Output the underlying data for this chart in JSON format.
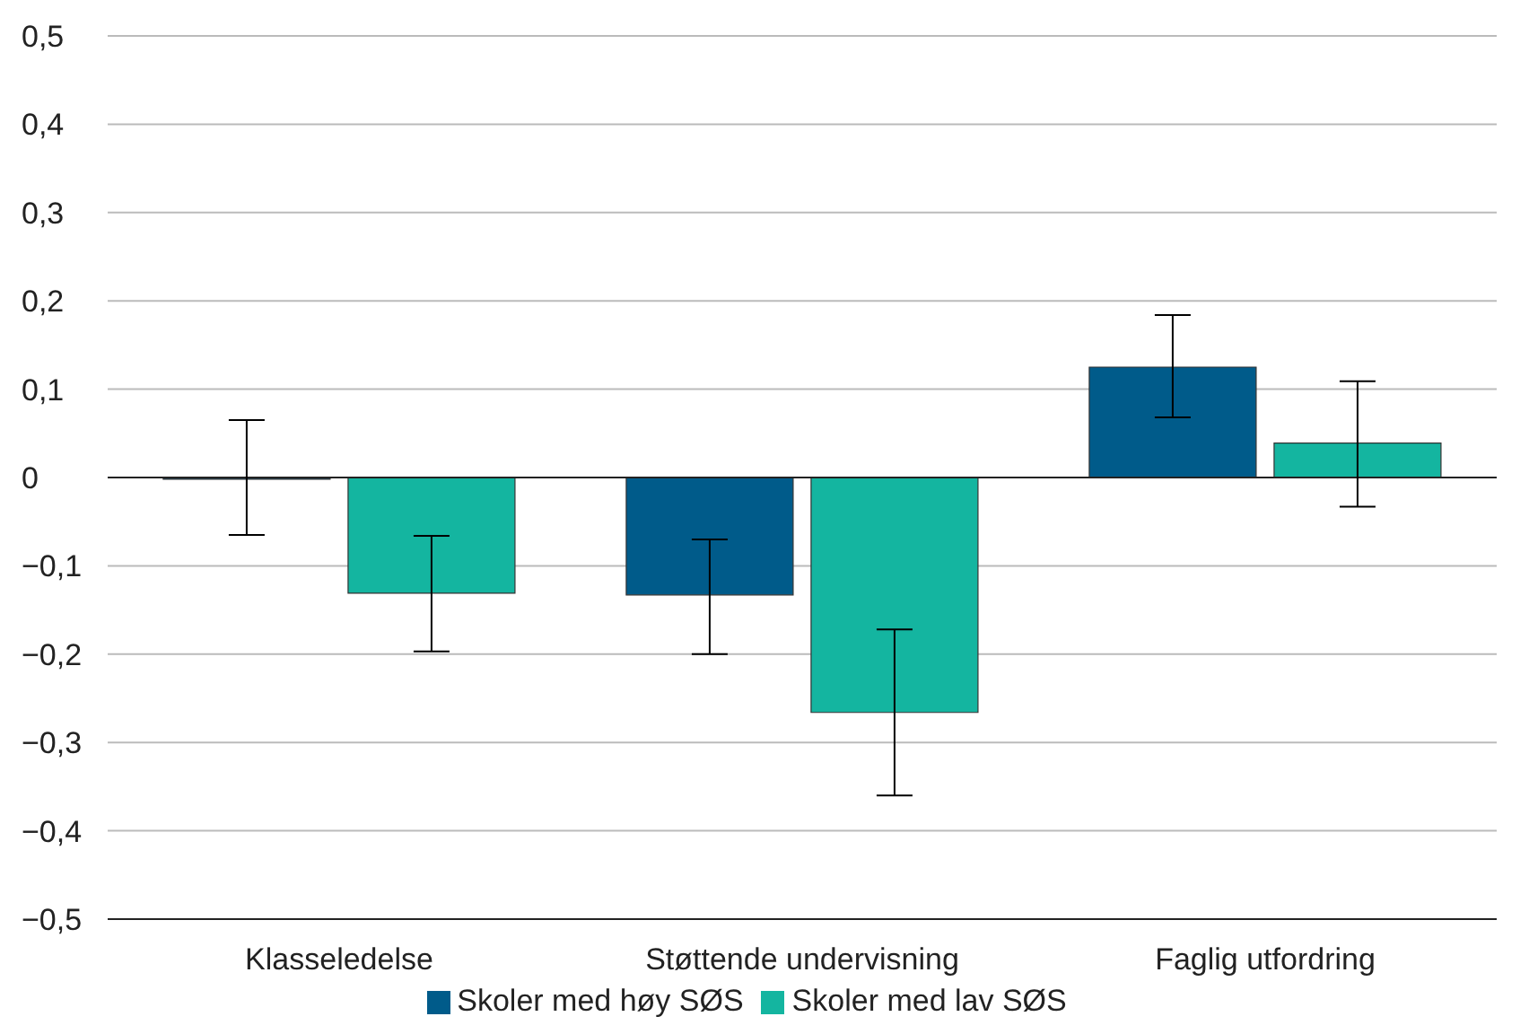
{
  "chart_data": {
    "type": "bar",
    "categories": [
      "Klasseledelse",
      "Støttende undervisning",
      "Faglig utfordring"
    ],
    "series": [
      {
        "name": "Skoler med høy SØS",
        "color": "#005b8a",
        "values": [
          -0.002,
          -0.133,
          0.125
        ],
        "errors": [
          [
            -0.065,
            0.065
          ],
          [
            -0.2,
            -0.07
          ],
          [
            0.068,
            0.184
          ]
        ]
      },
      {
        "name": "Skoler med lav SØS",
        "color": "#14b5a0",
        "values": [
          -0.131,
          -0.266,
          0.039
        ],
        "errors": [
          [
            -0.197,
            -0.066
          ],
          [
            -0.36,
            -0.172
          ],
          [
            -0.033,
            0.109
          ]
        ]
      }
    ],
    "ylim": [
      -0.5,
      0.5
    ],
    "yticks": [
      {
        "value": -0.5,
        "label": "−0,5"
      },
      {
        "value": -0.4,
        "label": "−0,4"
      },
      {
        "value": -0.3,
        "label": "−0,3"
      },
      {
        "value": -0.2,
        "label": "−0,2"
      },
      {
        "value": -0.1,
        "label": "−0,1"
      },
      {
        "value": 0,
        "label": "0"
      },
      {
        "value": 0.1,
        "label": "0,1"
      },
      {
        "value": 0.2,
        "label": "0,2"
      },
      {
        "value": 0.3,
        "label": "0,3"
      },
      {
        "value": 0.4,
        "label": "0,4"
      },
      {
        "value": 0.5,
        "label": "0,5"
      }
    ],
    "grid": "y",
    "legend": "bottom"
  }
}
